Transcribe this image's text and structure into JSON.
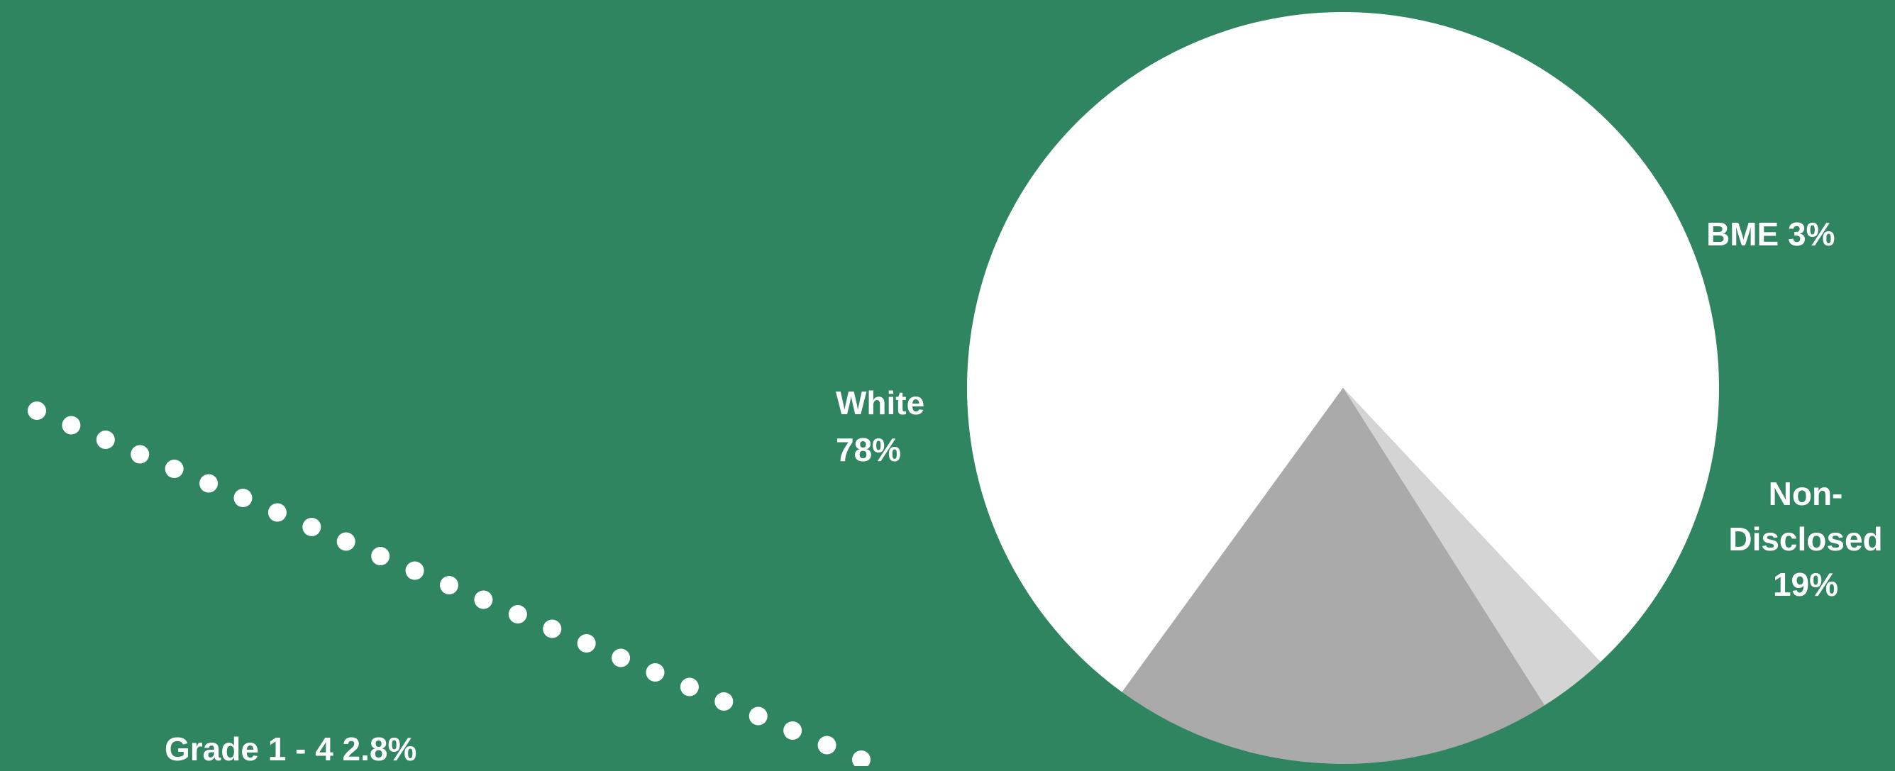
{
  "background_color": "#2e8560",
  "chart_data": {
    "type": "pie",
    "slices": [
      {
        "label": "White",
        "value": 78,
        "value_label": "78%",
        "color": "#ffffff"
      },
      {
        "label": "BME",
        "value": 3,
        "value_label": "3%",
        "color": "#d4d4d4"
      },
      {
        "label": "Non-Disclosed",
        "value": 19,
        "value_label": "19%",
        "color": "#aaaaaa"
      }
    ]
  },
  "labels": {
    "white_name": "White",
    "white_pct": "78%",
    "bme": "BME 3%",
    "nd_line1": "Non-",
    "nd_line2": "Disclosed",
    "nd_pct": "19%",
    "grade": "Grade 1 - 4 2.8%"
  }
}
